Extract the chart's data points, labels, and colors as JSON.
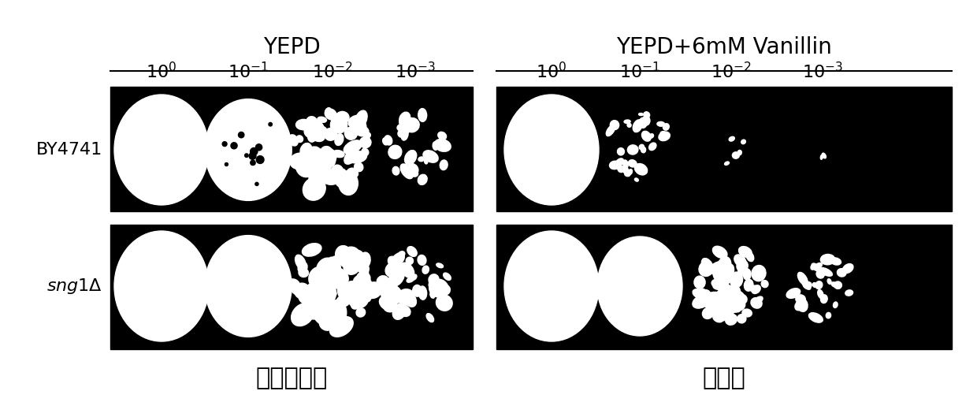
{
  "fig_width": 12.4,
  "fig_height": 5.15,
  "bg_color": "#ffffff",
  "title_yepd": "YEPD",
  "title_vanillin": "YEPD+6mM Vanillin",
  "row_labels": [
    "BY4741",
    "sng1Δ"
  ],
  "exponents": [
    "0",
    "-1",
    "-2",
    "-3"
  ],
  "bottom_label_left": "阴性对照组",
  "bottom_label_right": "实验组"
}
